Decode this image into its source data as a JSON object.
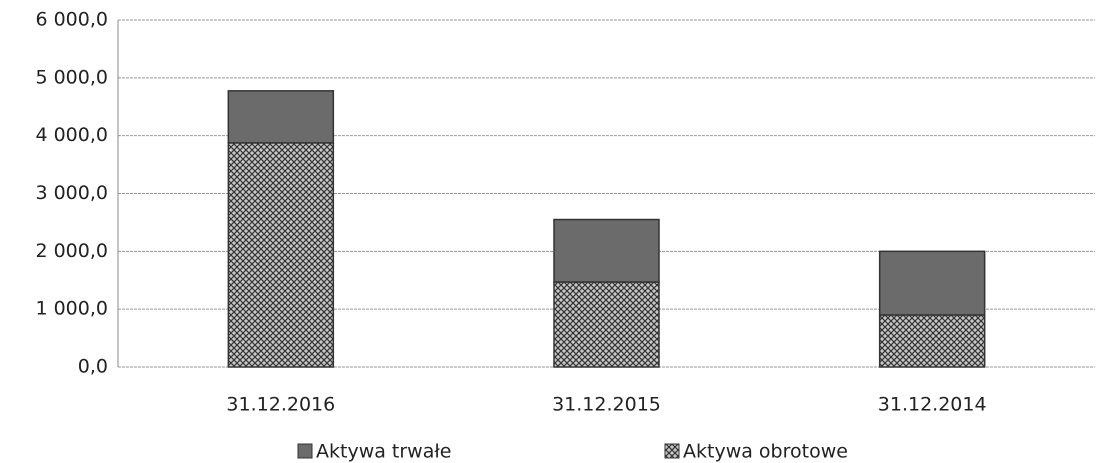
{
  "chart_data": {
    "type": "bar",
    "stacked": true,
    "categories": [
      "31.12.2016",
      "31.12.2015",
      "31.12.2014"
    ],
    "series": [
      {
        "name": "Aktywa trwałe",
        "color": "#6b6b6b",
        "values": [
          900,
          1080,
          1100
        ]
      },
      {
        "name": "Aktywa obrotowe",
        "color": "#c8c8c8",
        "pattern": "crosshatch",
        "values": [
          3875,
          1470,
          900
        ]
      }
    ],
    "ylim": [
      0,
      6000
    ],
    "yticks": [
      {
        "value": 0,
        "label": "0,0"
      },
      {
        "value": 1000,
        "label": "1 000,0"
      },
      {
        "value": 2000,
        "label": "2 000,0"
      },
      {
        "value": 3000,
        "label": "3 000,0"
      },
      {
        "value": 4000,
        "label": "4 000,0"
      },
      {
        "value": 5000,
        "label": "5 000,0"
      },
      {
        "value": 6000,
        "label": "6 000,0"
      }
    ],
    "grid": true,
    "legend": "bottom"
  }
}
